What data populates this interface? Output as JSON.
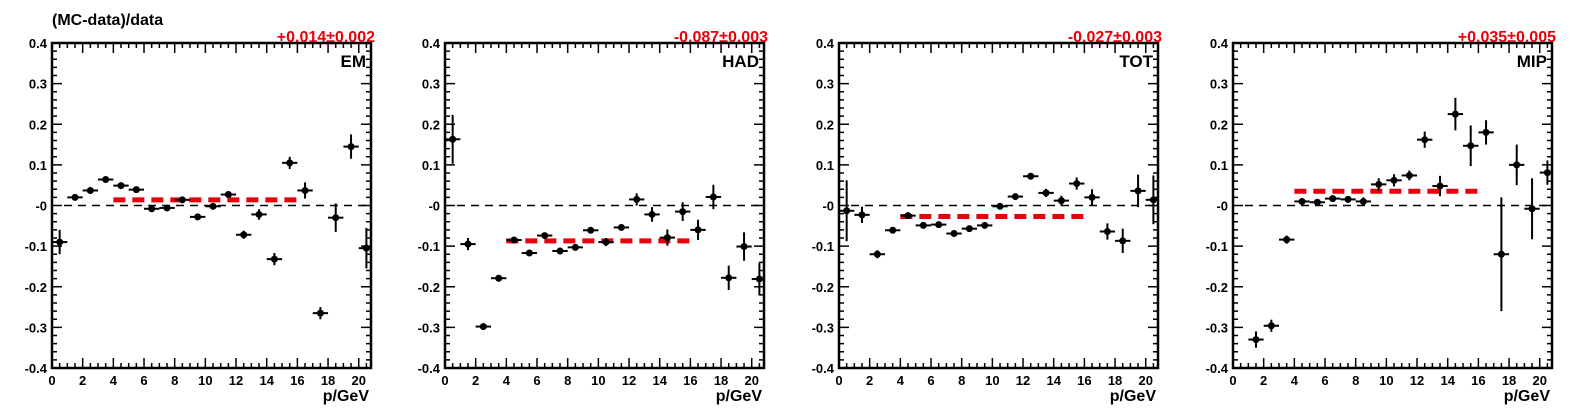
{
  "ylabel": "(MC-data)/data",
  "chart_data": [
    {
      "type": "scatter",
      "label": "EM",
      "fit_label": "+0.014±0.002",
      "fit_value": 0.014,
      "fit_range": [
        4,
        16
      ],
      "xlabel": "p/GeV",
      "xlim": [
        0,
        20.8
      ],
      "ylim": [
        -0.4,
        0.4
      ],
      "x": [
        0.5,
        1.5,
        2.5,
        3.5,
        4.5,
        5.5,
        6.5,
        7.5,
        8.5,
        9.5,
        10.5,
        11.5,
        12.5,
        13.5,
        14.5,
        15.5,
        16.5,
        17.5,
        18.5,
        19.5,
        20.5
      ],
      "y": [
        -0.09,
        0.02,
        0.037,
        0.064,
        0.049,
        0.039,
        -0.008,
        -0.006,
        0.014,
        -0.028,
        -0.002,
        0.027,
        -0.072,
        -0.022,
        -0.132,
        0.105,
        0.037,
        -0.265,
        -0.03,
        0.145,
        -0.105
      ],
      "yerr": [
        0.03,
        0.005,
        0.004,
        0.004,
        0.004,
        0.004,
        0.004,
        0.004,
        0.004,
        0.004,
        0.005,
        0.008,
        0.01,
        0.013,
        0.015,
        0.015,
        0.02,
        0.015,
        0.035,
        0.03,
        0.05
      ]
    },
    {
      "type": "scatter",
      "label": "HAD",
      "fit_label": "-0.087±0.003",
      "fit_value": -0.087,
      "fit_range": [
        4,
        16
      ],
      "xlabel": "p/GeV",
      "xlim": [
        0,
        20.8
      ],
      "ylim": [
        -0.4,
        0.4
      ],
      "x": [
        0.5,
        1.5,
        2.5,
        3.5,
        4.5,
        5.5,
        6.5,
        7.5,
        8.5,
        9.5,
        10.5,
        11.5,
        12.5,
        13.5,
        14.5,
        15.5,
        16.5,
        17.5,
        18.5,
        19.5,
        20.5
      ],
      "y": [
        0.163,
        -0.095,
        -0.298,
        -0.179,
        -0.085,
        -0.117,
        -0.074,
        -0.112,
        -0.103,
        -0.061,
        -0.09,
        -0.054,
        0.015,
        -0.022,
        -0.079,
        -0.015,
        -0.06,
        0.021,
        -0.178,
        -0.101,
        -0.181
      ],
      "yerr": [
        0.06,
        0.015,
        0.008,
        0.005,
        0.004,
        0.004,
        0.004,
        0.004,
        0.004,
        0.005,
        0.01,
        0.008,
        0.015,
        0.018,
        0.02,
        0.023,
        0.025,
        0.03,
        0.03,
        0.035,
        0.04
      ]
    },
    {
      "type": "scatter",
      "label": "TOT",
      "fit_label": "-0.027±0.003",
      "fit_value": -0.027,
      "fit_range": [
        4,
        16
      ],
      "xlabel": "p/GeV",
      "xlim": [
        0,
        20.8
      ],
      "ylim": [
        -0.4,
        0.4
      ],
      "x": [
        0.5,
        1.5,
        2.5,
        3.5,
        4.5,
        5.5,
        6.5,
        7.5,
        8.5,
        9.5,
        10.5,
        11.5,
        12.5,
        13.5,
        14.5,
        15.5,
        16.5,
        17.5,
        18.5,
        19.5,
        20.5
      ],
      "y": [
        -0.013,
        -0.023,
        -0.12,
        -0.061,
        -0.025,
        -0.049,
        -0.047,
        -0.069,
        -0.057,
        -0.049,
        -0.002,
        0.022,
        0.072,
        0.031,
        0.012,
        0.054,
        0.02,
        -0.064,
        -0.087,
        0.036,
        0.014
      ],
      "yerr": [
        0.075,
        0.02,
        0.01,
        0.005,
        0.004,
        0.004,
        0.004,
        0.004,
        0.004,
        0.004,
        0.004,
        0.005,
        0.006,
        0.01,
        0.012,
        0.015,
        0.02,
        0.02,
        0.03,
        0.04,
        0.06
      ]
    },
    {
      "type": "scatter",
      "label": "MIP",
      "fit_label": "+0.035±0.005",
      "fit_value": 0.035,
      "fit_range": [
        4,
        16
      ],
      "xlabel": "p/GeV",
      "xlim": [
        0,
        20.8
      ],
      "ylim": [
        -0.4,
        0.4
      ],
      "x": [
        1.5,
        2.5,
        3.5,
        4.5,
        5.5,
        6.5,
        7.5,
        8.5,
        9.5,
        10.5,
        11.5,
        12.5,
        13.5,
        14.5,
        15.5,
        16.5,
        17.5,
        18.5,
        19.5,
        20.5
      ],
      "y": [
        -0.33,
        -0.296,
        -0.084,
        0.01,
        0.008,
        0.017,
        0.015,
        0.01,
        0.052,
        0.062,
        0.074,
        0.162,
        0.048,
        0.225,
        0.147,
        0.18,
        -0.12,
        0.1,
        -0.008,
        0.081
      ],
      "yerr": [
        0.02,
        0.015,
        0.01,
        0.008,
        0.008,
        0.008,
        0.008,
        0.01,
        0.015,
        0.015,
        0.012,
        0.02,
        0.025,
        0.04,
        0.05,
        0.03,
        0.14,
        0.05,
        0.075,
        0.03
      ]
    }
  ]
}
